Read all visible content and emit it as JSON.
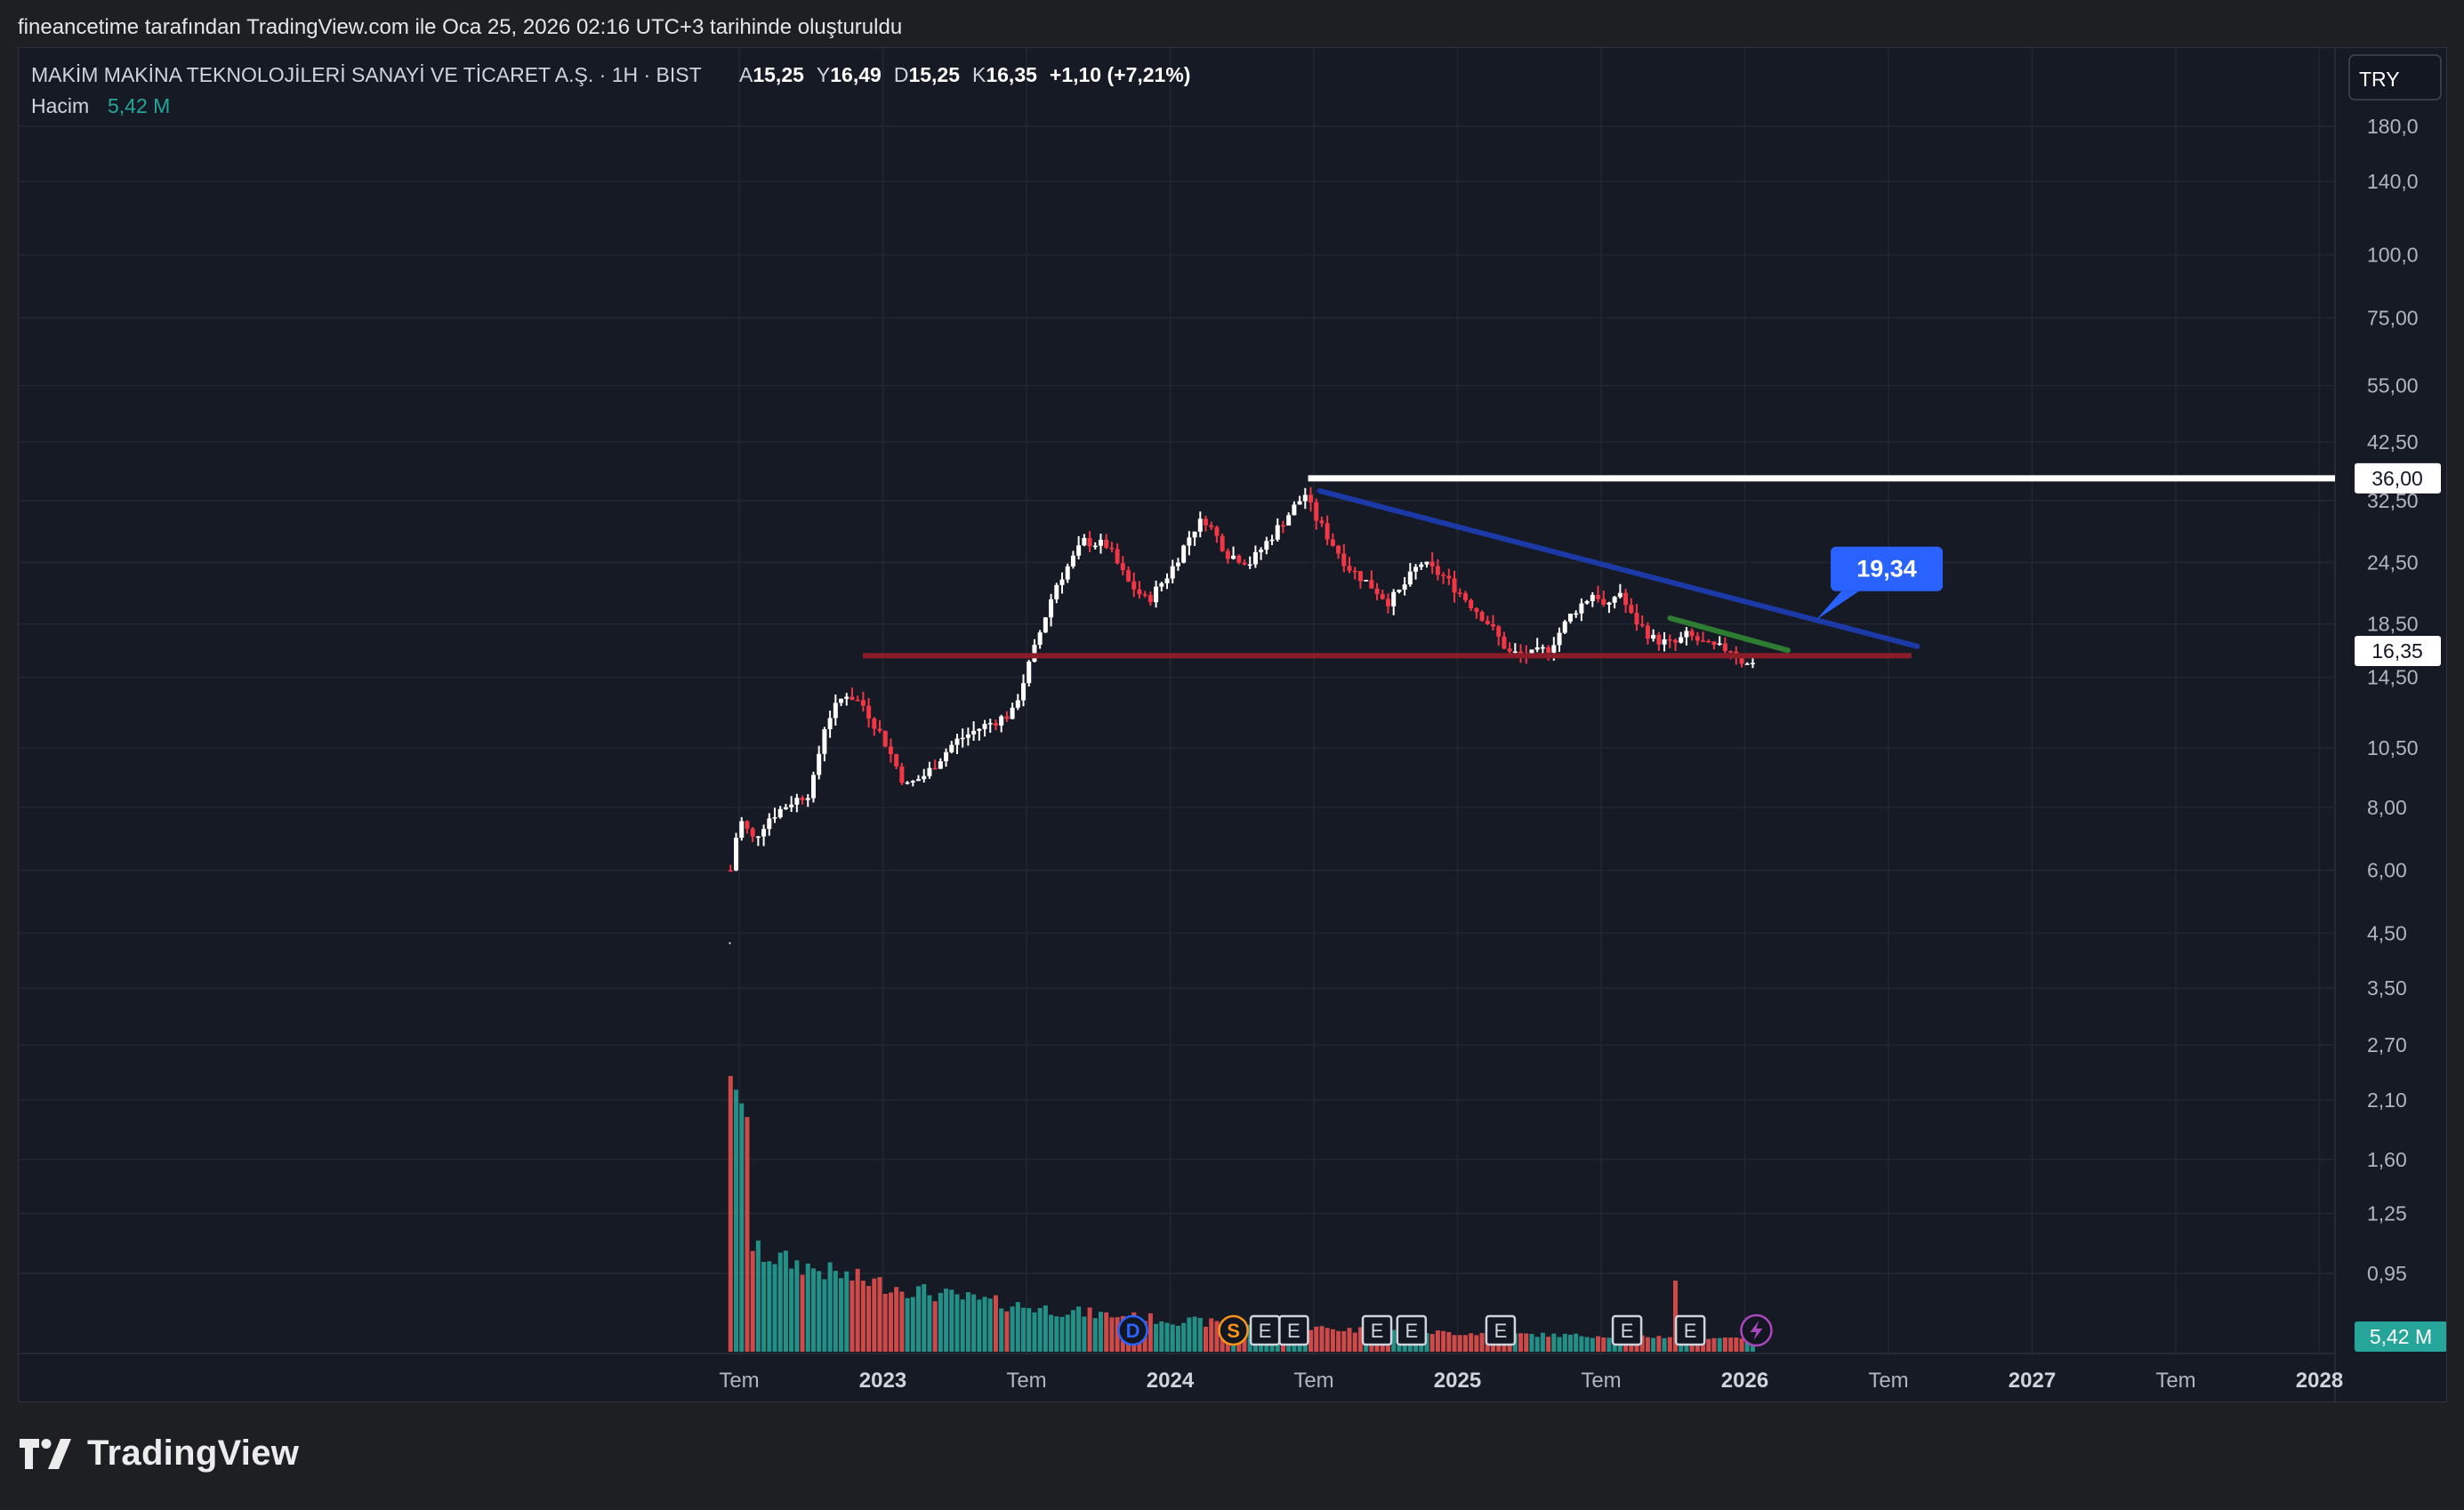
{
  "caption": "fineancetime tarafından TradingView.com ile Oca 25, 2026 02:16 UTC+3 tarihinde oluşturuldu",
  "brand": "TradingView",
  "legend": {
    "symbol": "MAKİM MAKİNA TEKNOLOJİLERİ SANAYİ VE TİCARET A.Ş. · 1H · BIST",
    "o_label": "A",
    "o_value": "15,25",
    "h_label": "Y",
    "h_value": "16,49",
    "l_label": "D",
    "l_value": "15,25",
    "c_label": "K",
    "c_value": "16,35",
    "change": "+1,10 (+7,21%)",
    "volume_label": "Hacim",
    "volume_value": "5,42 M"
  },
  "currency": "TRY",
  "colors": {
    "background": "#161a25",
    "up": "#ffffff",
    "down": "#f23645",
    "vol_up": "#26a69a",
    "vol_down": "#ef5350",
    "line_white": "#ffffff",
    "line_blue": "#1b3aa8",
    "line_red": "#8b1c2a",
    "line_green": "#2e7d32",
    "callout": "#2962ff"
  },
  "chart_data": {
    "type": "candlestick",
    "interval": "1 week candles on log price scale",
    "yscale": "log",
    "ylim": [
      0.72,
      215
    ],
    "price_ticks": [
      "180,0",
      "140,0",
      "100,0",
      "75,00",
      "55,00",
      "42,50",
      "32,50",
      "24,50",
      "18,50",
      "14,50",
      "10,50",
      "8,00",
      "6,00",
      "4,50",
      "3,50",
      "2,70",
      "2,10",
      "1,60",
      "1,25",
      "0,95"
    ],
    "x_ticks": [
      {
        "label": "Tem",
        "t": 2022.5,
        "bold": false
      },
      {
        "label": "2023",
        "t": 2023.0,
        "bold": true
      },
      {
        "label": "Tem",
        "t": 2023.5,
        "bold": false
      },
      {
        "label": "2024",
        "t": 2024.0,
        "bold": true
      },
      {
        "label": "Tem",
        "t": 2024.5,
        "bold": false
      },
      {
        "label": "2025",
        "t": 2025.0,
        "bold": true
      },
      {
        "label": "Tem",
        "t": 2025.5,
        "bold": false
      },
      {
        "label": "2026",
        "t": 2026.0,
        "bold": true
      },
      {
        "label": "Tem",
        "t": 2026.5,
        "bold": false
      },
      {
        "label": "2027",
        "t": 2027.0,
        "bold": true
      },
      {
        "label": "Tem",
        "t": 2027.5,
        "bold": false
      },
      {
        "label": "2028",
        "t": 2028.0,
        "bold": true
      }
    ],
    "price_anchors": [
      [
        2022.47,
        6.0
      ],
      [
        2022.5,
        7.6
      ],
      [
        2022.55,
        6.9
      ],
      [
        2022.6,
        7.6
      ],
      [
        2022.68,
        8.2
      ],
      [
        2022.75,
        8.6
      ],
      [
        2022.8,
        11.8
      ],
      [
        2022.87,
        13.5
      ],
      [
        2022.93,
        12.8
      ],
      [
        2023.0,
        11.0
      ],
      [
        2023.08,
        8.8
      ],
      [
        2023.15,
        9.3
      ],
      [
        2023.25,
        10.8
      ],
      [
        2023.35,
        11.6
      ],
      [
        2023.45,
        12.3
      ],
      [
        2023.52,
        16.0
      ],
      [
        2023.6,
        22.0
      ],
      [
        2023.7,
        27.0
      ],
      [
        2023.78,
        26.5
      ],
      [
        2023.85,
        22.5
      ],
      [
        2023.92,
        20.5
      ],
      [
        2024.0,
        23.5
      ],
      [
        2024.08,
        28.5
      ],
      [
        2024.12,
        30.0
      ],
      [
        2024.2,
        25.5
      ],
      [
        2024.28,
        24.5
      ],
      [
        2024.36,
        28.0
      ],
      [
        2024.43,
        31.5
      ],
      [
        2024.47,
        33.5
      ],
      [
        2024.5,
        30.5
      ],
      [
        2024.55,
        27.5
      ],
      [
        2024.62,
        24.0
      ],
      [
        2024.7,
        22.0
      ],
      [
        2024.76,
        20.5
      ],
      [
        2024.8,
        21.5
      ],
      [
        2024.87,
        24.5
      ],
      [
        2024.95,
        23.0
      ],
      [
        2025.02,
        21.0
      ],
      [
        2025.1,
        18.8
      ],
      [
        2025.18,
        16.2
      ],
      [
        2025.25,
        16.0
      ],
      [
        2025.32,
        16.6
      ],
      [
        2025.4,
        19.5
      ],
      [
        2025.48,
        21.5
      ],
      [
        2025.52,
        19.5
      ],
      [
        2025.56,
        21.8
      ],
      [
        2025.6,
        19.3
      ],
      [
        2025.68,
        17.3
      ],
      [
        2025.75,
        16.8
      ],
      [
        2025.8,
        17.6
      ],
      [
        2025.88,
        16.6
      ],
      [
        2025.95,
        16.5
      ],
      [
        2026.0,
        15.4
      ],
      [
        2026.02,
        15.25
      ],
      [
        2026.04,
        16.35
      ]
    ],
    "volume_scale_max": "5,42 M",
    "series": [
      {
        "name": "Hacim",
        "type": "volume"
      }
    ],
    "horizontal_lines": [
      {
        "price": 36.0,
        "from": 2024.48,
        "to": 2029.5,
        "color": "white",
        "label": "36,00"
      },
      {
        "price": 16.0,
        "from": 2022.93,
        "to": 2026.58,
        "color": "red"
      }
    ],
    "trend_lines": [
      {
        "from": [
          2024.52,
          34.0
        ],
        "to": [
          2026.6,
          16.7
        ],
        "color": "blue"
      },
      {
        "from": [
          2025.74,
          19.0
        ],
        "to": [
          2026.15,
          16.4
        ],
        "color": "green"
      }
    ],
    "callout": {
      "label": "19,34",
      "t": 2026.24,
      "price": 19.34
    },
    "last_price": "16,35",
    "last_volume": "5,42 M",
    "events": [
      {
        "t": 2023.87,
        "type": "D"
      },
      {
        "t": 2024.22,
        "type": "S"
      },
      {
        "t": 2024.33,
        "type": "E"
      },
      {
        "t": 2024.43,
        "type": "E"
      },
      {
        "t": 2024.72,
        "type": "E"
      },
      {
        "t": 2024.84,
        "type": "E"
      },
      {
        "t": 2025.15,
        "type": "E"
      },
      {
        "t": 2025.59,
        "type": "E"
      },
      {
        "t": 2025.81,
        "type": "E"
      },
      {
        "t": 2026.04,
        "type": "lightning"
      }
    ]
  }
}
